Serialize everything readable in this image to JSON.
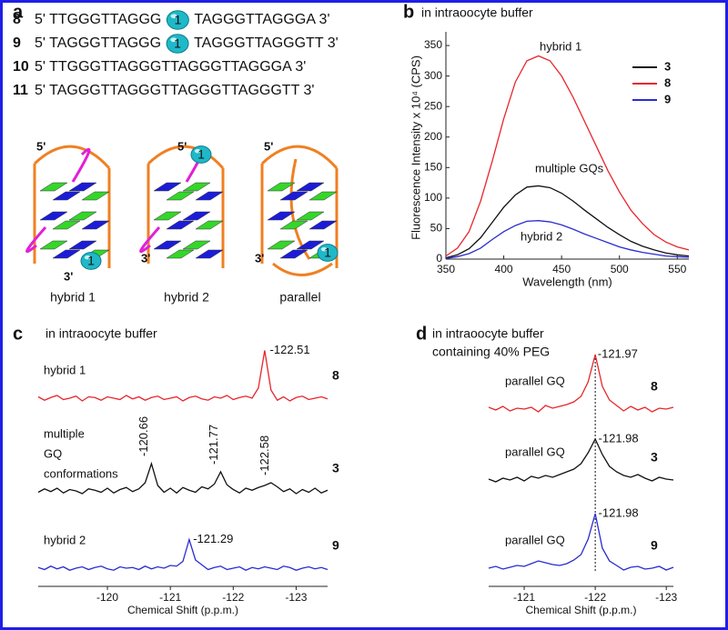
{
  "panel_labels": [
    "a",
    "b",
    "c",
    "d"
  ],
  "sequences": [
    {
      "id": "8",
      "left": "5' TTGGGTTAGGG",
      "modification": "1",
      "right": "TAGGGTTAGGGA 3'"
    },
    {
      "id": "9",
      "left": "5' TAGGGTTAGGG",
      "modification": "1",
      "right": "TAGGGTTAGGGTT 3'"
    },
    {
      "id": "10",
      "text": "5' TTGGGTTAGGGTTAGGGTTAGGGA 3'"
    },
    {
      "id": "11",
      "text": "5' TAGGGTTAGGGTTAGGGTTAGGGTT 3'"
    }
  ],
  "structures": [
    {
      "label": "hybrid 1",
      "five_prime": "5'",
      "three_prime": "3'",
      "modification": "1"
    },
    {
      "label": "hybrid 2",
      "five_prime": "5'",
      "three_prime": "3'",
      "modification": "1"
    },
    {
      "label": "parallel",
      "five_prime": "5'",
      "three_prime": "3'",
      "modification": "1"
    }
  ],
  "chart_data": [
    {
      "type": "line",
      "title": "in intraoocyte buffer",
      "x_label": "Wavelength (nm)",
      "y_label": "Fluorescence Intensity x 10⁴ (CPS)",
      "x": [
        350,
        360,
        370,
        380,
        390,
        400,
        410,
        420,
        430,
        440,
        450,
        460,
        470,
        480,
        490,
        500,
        510,
        520,
        530,
        540,
        550,
        560
      ],
      "series": [
        {
          "name": "3",
          "color": "#111111",
          "values": [
            2,
            7,
            17,
            35,
            60,
            85,
            105,
            118,
            120,
            117,
            108,
            95,
            80,
            66,
            52,
            40,
            29,
            21,
            15,
            10,
            7,
            5
          ]
        },
        {
          "name": "8",
          "color": "#e8262b",
          "values": [
            5,
            18,
            45,
            95,
            160,
            230,
            290,
            325,
            333,
            325,
            300,
            265,
            225,
            185,
            145,
            110,
            80,
            58,
            40,
            28,
            20,
            15
          ]
        },
        {
          "name": "9",
          "color": "#2b2bd0",
          "values": [
            1,
            4,
            9,
            18,
            32,
            45,
            55,
            62,
            63,
            61,
            56,
            49,
            41,
            34,
            27,
            20,
            15,
            11,
            8,
            5,
            4,
            3
          ]
        }
      ],
      "annotations": [
        "hybrid 1",
        "multiple GQs",
        "hybrid 2"
      ],
      "xlim": [
        350,
        560
      ],
      "ylim": [
        0,
        365
      ],
      "xticks": [
        350,
        400,
        450,
        500,
        550
      ],
      "yticks": [
        0,
        50,
        100,
        150,
        200,
        250,
        300,
        350
      ],
      "legend": "upper right"
    },
    {
      "type": "spectrum",
      "title": "in intraoocyte buffer",
      "x_label": "Chemical Shift (p.p.m.)",
      "x": [
        -118.9,
        -119,
        -119.1,
        -119.2,
        -119.3,
        -119.4,
        -119.5,
        -119.6,
        -119.7,
        -119.8,
        -119.9,
        -120,
        -120.1,
        -120.2,
        -120.3,
        -120.4,
        -120.5,
        -120.6,
        -120.7,
        -120.8,
        -120.9,
        -121,
        -121.1,
        -121.2,
        -121.3,
        -121.4,
        -121.5,
        -121.6,
        -121.7,
        -121.8,
        -121.9,
        -122,
        -122.1,
        -122.2,
        -122.3,
        -122.4,
        -122.5,
        -122.6,
        -122.7,
        -122.8,
        -122.9,
        -123,
        -123.1,
        -123.2,
        -123.3,
        -123.4,
        -123.5
      ],
      "xlim": [
        -118.9,
        -123.5
      ],
      "xticks": [
        -120,
        -121,
        -122,
        -123
      ],
      "series": [
        {
          "label": [
            "hybrid 1"
          ],
          "id": "8",
          "color": "#e8262b",
          "peaks": [
            -122.51
          ],
          "values": [
            2,
            -3,
            1,
            4,
            -2,
            0,
            3,
            -4,
            2,
            1,
            -3,
            2,
            0,
            -2,
            4,
            -1,
            2,
            -3,
            1,
            3,
            -2,
            0,
            2,
            -4,
            1,
            3,
            -1,
            -3,
            2,
            0,
            4,
            -2,
            1,
            3,
            0,
            15,
            70,
            12,
            -3,
            2,
            -4,
            1,
            3,
            -2,
            0,
            2,
            -1
          ]
        },
        {
          "label": [
            "multiple",
            "GQ",
            "conformations"
          ],
          "id": "3",
          "color": "#111111",
          "peaks": [
            -120.66,
            -121.77,
            -122.58
          ],
          "values": [
            -2,
            3,
            -1,
            4,
            -3,
            2,
            0,
            -4,
            3,
            1,
            -2,
            4,
            -3,
            2,
            5,
            -1,
            3,
            12,
            40,
            8,
            -2,
            4,
            -3,
            5,
            1,
            -2,
            6,
            3,
            10,
            28,
            9,
            2,
            -3,
            4,
            1,
            5,
            8,
            12,
            6,
            -1,
            3,
            -4,
            2,
            -2,
            4,
            -3,
            1
          ]
        },
        {
          "label": [
            "hybrid 2"
          ],
          "id": "9",
          "color": "#2b2bd0",
          "peaks": [
            -121.29
          ],
          "values": [
            1,
            -2,
            3,
            -1,
            2,
            -3,
            0,
            2,
            -2,
            1,
            3,
            -1,
            -3,
            2,
            0,
            1,
            -2,
            3,
            -1,
            2,
            0,
            4,
            3,
            10,
            42,
            12,
            5,
            -2,
            1,
            3,
            -2,
            0,
            2,
            -3,
            1,
            -1,
            2,
            0,
            -2,
            3,
            1,
            -3,
            0,
            2,
            -1,
            1,
            -2
          ]
        }
      ]
    },
    {
      "type": "spectrum",
      "title": "in intraoocyte buffer",
      "subtitle": "containing 40% PEG",
      "x_label": "Chemical Shift (p.p.m.)",
      "x": [
        -120.5,
        -120.6,
        -120.7,
        -120.8,
        -120.9,
        -121,
        -121.1,
        -121.2,
        -121.3,
        -121.4,
        -121.5,
        -121.6,
        -121.7,
        -121.8,
        -121.9,
        -122,
        -122.1,
        -122.2,
        -122.3,
        -122.4,
        -122.5,
        -122.6,
        -122.7,
        -122.8,
        -122.9,
        -123,
        -123.1
      ],
      "xlim": [
        -120.5,
        -123.1
      ],
      "xticks": [
        -121,
        -122,
        -123
      ],
      "series": [
        {
          "label": [
            "parallel GQ"
          ],
          "id": "8",
          "color": "#e8262b",
          "peaks": [
            -121.97
          ],
          "values": [
            2,
            -1,
            3,
            -2,
            1,
            0,
            2,
            -3,
            4,
            1,
            3,
            5,
            8,
            14,
            30,
            60,
            25,
            10,
            4,
            -2,
            3,
            -1,
            2,
            -3,
            1,
            0,
            2
          ]
        },
        {
          "label": [
            "parallel GQ"
          ],
          "id": "3",
          "color": "#111111",
          "peaks": [
            -121.98
          ],
          "values": [
            1,
            -2,
            2,
            0,
            3,
            -1,
            4,
            2,
            5,
            3,
            6,
            9,
            12,
            18,
            30,
            45,
            28,
            15,
            9,
            5,
            3,
            6,
            2,
            -1,
            3,
            1,
            0
          ]
        },
        {
          "label": [
            "parallel GQ"
          ],
          "id": "9",
          "color": "#2b2bd0",
          "peaks": [
            -121.98
          ],
          "values": [
            0,
            2,
            -1,
            1,
            3,
            2,
            5,
            8,
            6,
            4,
            3,
            5,
            9,
            15,
            32,
            60,
            22,
            8,
            3,
            -2,
            1,
            2,
            -1,
            0,
            2,
            -2,
            1
          ]
        }
      ]
    }
  ]
}
